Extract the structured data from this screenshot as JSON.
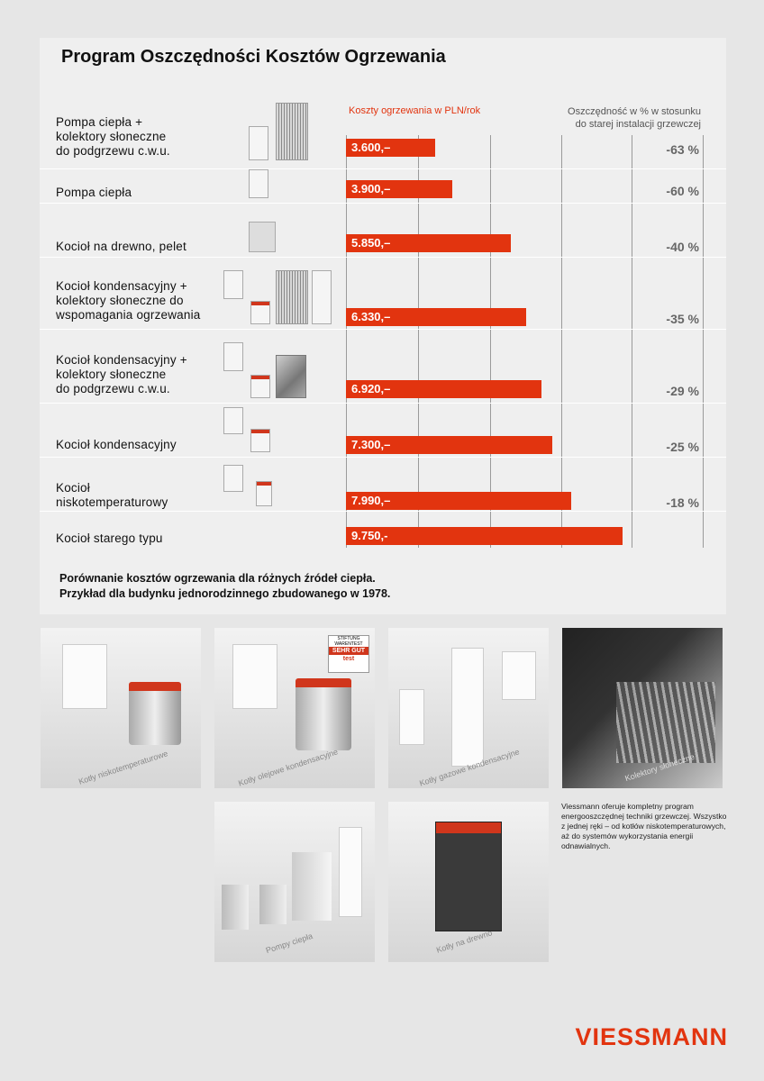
{
  "title": "Program Oszczędności Kosztów Ogrzewania",
  "headers": {
    "bar": "Koszty ogrzewania w PLN/rok",
    "savings_line1": "Oszczędność w % w stosunku",
    "savings_line2": "do starej instalacji grzewczej"
  },
  "rows": [
    {
      "label": "Pompa ciepła +\nkolektory słoneczne\ndo podgrzewu c.w.u.",
      "value": "3.600,–",
      "saving": "-63 %"
    },
    {
      "label": "Pompa ciepła",
      "value": "3.900,–",
      "saving": "-60 %"
    },
    {
      "label": "Kocioł na drewno, pelet",
      "value": "5.850,–",
      "saving": "-40 %"
    },
    {
      "label": "Kocioł kondensacyjny +\nkolektory słoneczne do\nwspomagania ogrzewania",
      "value": "6.330,–",
      "saving": "-35 %"
    },
    {
      "label": "Kocioł kondensacyjny +\nkolektory słoneczne\ndo podgrzewu c.w.u.",
      "value": "6.920,–",
      "saving": "-29 %"
    },
    {
      "label": "Kocioł kondensacyjny",
      "value": "7.300,–",
      "saving": "-25 %"
    },
    {
      "label": "Kocioł\nniskotemperaturowy",
      "value": "7.990,–",
      "saving": "-18 %"
    },
    {
      "label": "Kocioł starego typu",
      "value": "9.750,-",
      "saving": ""
    }
  ],
  "caption_line1": "Porównanie kosztów ogrzewania dla różnych źródeł ciepła.",
  "caption_line2": "Przykład dla budynku jednorodzinnego zbudowanego w 1978.",
  "photos": {
    "p1": "Kotły niskotemperaturowe",
    "p2": "Kotły olejowe kondensacyjne",
    "p3": "Kotły gazowe kondensacyjne",
    "p4": "Kolektory słoneczne",
    "p5": "Pompy ciepła",
    "p6": "Kotły na drewno"
  },
  "badge": {
    "line1": "STIFTUNG",
    "line2": "WARENTEST",
    "line3": "SEHR GUT",
    "line4": "test"
  },
  "info_text": "Viessmann oferuje kompletny program energooszczędnej techniki grzewczej. Wszystko z jednej ręki – od kotłów niskotemperaturowych, aż do systemów wykorzystania energii odnawialnych.",
  "logo": "VIESSMANN",
  "colors": {
    "accent": "#e2340f",
    "panel": "#efefef",
    "background": "#e6e6e6"
  }
}
